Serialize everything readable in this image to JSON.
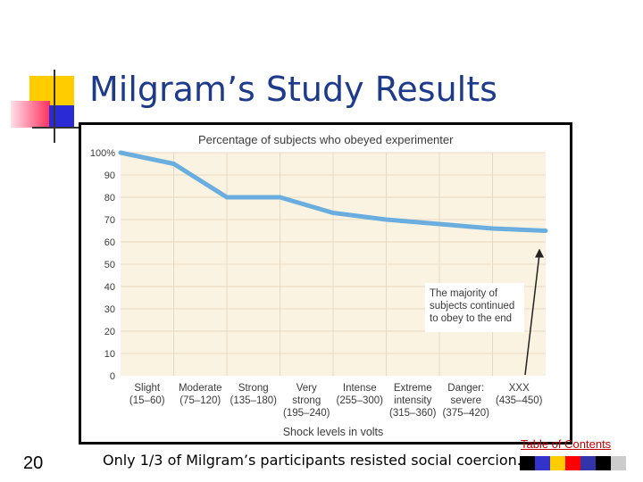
{
  "slide": {
    "title": "Milgram’s Study Results",
    "number": "20",
    "caption": "Only 1/3 of Milgram’s participants resisted social coercion.",
    "toc_link": "Table of Contents"
  },
  "colors": {
    "title": "#1e3a8a",
    "accent_yellow": "#ffcc00",
    "accent_blue": "#2a2ad6",
    "accent_red": "#ff3060",
    "plot_bg": "#fbf3e1",
    "line": "#6aaedf",
    "strip": [
      "#000000",
      "#3333cc",
      "#ffcc00",
      "#ff0000",
      "#3333aa",
      "#000000",
      "#cccccc"
    ]
  },
  "chart_data": {
    "type": "line",
    "title": "Percentage of subjects who obeyed experimenter",
    "xlabel": "Shock levels in volts",
    "ylabel": "",
    "ylim": [
      0,
      100
    ],
    "yticks": [
      "0",
      "10",
      "20",
      "30",
      "40",
      "50",
      "60",
      "70",
      "80",
      "90",
      "100%"
    ],
    "categories": [
      {
        "line1": "Slight",
        "line2": "(15–60)",
        "line3": ""
      },
      {
        "line1": "Moderate",
        "line2": "(75–120)",
        "line3": ""
      },
      {
        "line1": "Strong",
        "line2": "(135–180)",
        "line3": ""
      },
      {
        "line1": "Very",
        "line2": "strong",
        "line3": "(195–240)"
      },
      {
        "line1": "Intense",
        "line2": "(255–300)",
        "line3": ""
      },
      {
        "line1": "Extreme",
        "line2": "intensity",
        "line3": "(315–360)"
      },
      {
        "line1": "Danger:",
        "line2": "severe",
        "line3": "(375–420)"
      },
      {
        "line1": "XXX",
        "line2": "(435–450)",
        "line3": ""
      }
    ],
    "x": [
      0,
      1,
      2,
      3,
      4,
      5,
      6,
      7,
      8
    ],
    "values": [
      100,
      95,
      80,
      80,
      73,
      70,
      68,
      66,
      65
    ],
    "grid": true,
    "annotation": {
      "lines": [
        "The majority of",
        "subjects continued",
        "to obey to the end"
      ]
    }
  }
}
